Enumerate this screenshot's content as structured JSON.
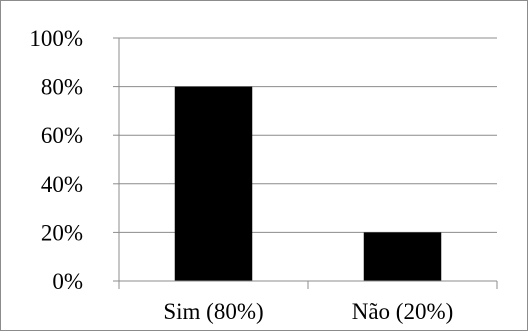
{
  "chart_data": {
    "type": "bar",
    "categories": [
      "Sim (80%)",
      "Não (20%)"
    ],
    "values": [
      80,
      20
    ],
    "ylim": [
      0,
      100
    ],
    "yticks": [
      0,
      20,
      40,
      60,
      80,
      100
    ],
    "ytick_labels": [
      "0%",
      "20%",
      "40%",
      "60%",
      "80%",
      "100%"
    ],
    "grid": true,
    "legend": "none",
    "colors": {
      "bar": "#000000",
      "grid": "#8c8c8c",
      "axis": "#8c8c8c",
      "border": "#8c8c8c"
    }
  }
}
